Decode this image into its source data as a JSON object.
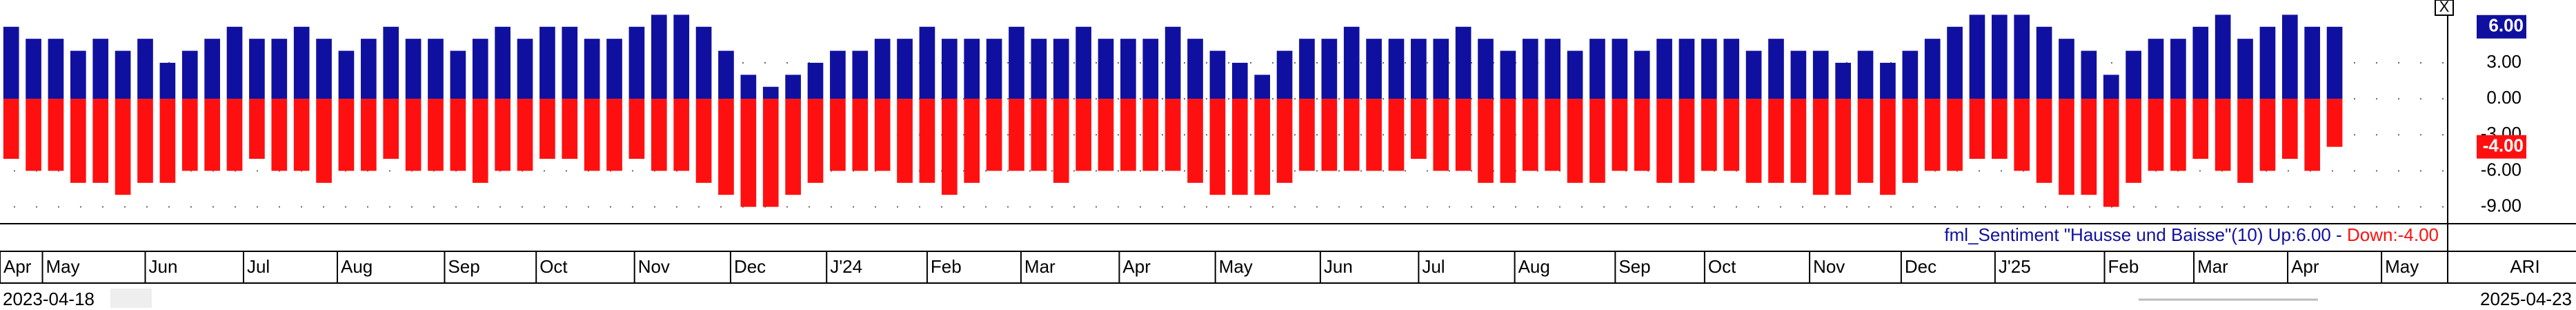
{
  "chart_data": {
    "type": "bar",
    "indicator": "fml_Sentiment \"Hausse und Baisse\"(10)",
    "legend_colon": ":",
    "legend_dash": "-",
    "series": [
      {
        "name": "Up",
        "color": "#1010a0",
        "last_value_label": "6.00",
        "values": [
          6,
          5,
          5,
          4,
          5,
          4,
          5,
          3,
          4,
          5,
          6,
          5,
          5,
          6,
          5,
          4,
          5,
          6,
          5,
          5,
          4,
          5,
          6,
          5,
          6,
          6,
          5,
          5,
          6,
          7,
          7,
          6,
          4,
          2,
          1,
          2,
          3,
          4,
          4,
          5,
          5,
          6,
          5,
          5,
          5,
          6,
          5,
          5,
          6,
          5,
          5,
          5,
          6,
          5,
          4,
          3,
          2,
          4,
          5,
          5,
          6,
          5,
          5,
          5,
          5,
          6,
          5,
          4,
          5,
          5,
          4,
          5,
          5,
          4,
          5,
          5,
          5,
          5,
          4,
          5,
          4,
          4,
          3,
          4,
          3,
          4,
          5,
          6,
          7,
          7,
          7,
          6,
          5,
          4,
          2,
          4,
          5,
          5,
          6,
          7,
          5,
          6,
          7,
          6,
          6
        ]
      },
      {
        "name": "Down",
        "color": "#ff1010",
        "last_value_label": "-4.00",
        "values": [
          -5,
          -6,
          -6,
          -7,
          -7,
          -8,
          -7,
          -7,
          -6,
          -6,
          -6,
          -5,
          -6,
          -6,
          -7,
          -6,
          -6,
          -5,
          -6,
          -6,
          -6,
          -7,
          -6,
          -6,
          -5,
          -5,
          -6,
          -6,
          -5,
          -6,
          -6,
          -7,
          -8,
          -9,
          -9,
          -8,
          -7,
          -6,
          -6,
          -6,
          -7,
          -7,
          -8,
          -7,
          -6,
          -6,
          -6,
          -7,
          -6,
          -6,
          -6,
          -6,
          -6,
          -7,
          -8,
          -8,
          -8,
          -7,
          -6,
          -6,
          -6,
          -6,
          -6,
          -5,
          -6,
          -6,
          -7,
          -7,
          -6,
          -6,
          -7,
          -7,
          -6,
          -6,
          -7,
          -7,
          -6,
          -6,
          -7,
          -7,
          -7,
          -8,
          -8,
          -7,
          -8,
          -7,
          -6,
          -6,
          -5,
          -5,
          -6,
          -7,
          -8,
          -8,
          -9,
          -7,
          -6,
          -6,
          -5,
          -6,
          -7,
          -6,
          -5,
          -6,
          -4
        ]
      }
    ],
    "ylim": [
      -10,
      8
    ],
    "yticks": [
      {
        "value": 3,
        "label": "3.00"
      },
      {
        "value": 0,
        "label": "0.00"
      },
      {
        "value": -3,
        "label": "-3.00"
      },
      {
        "value": -6,
        "label": "-6.00"
      },
      {
        "value": -9,
        "label": "-9.00"
      }
    ],
    "grid": true,
    "xlim": [
      0,
      109.5
    ],
    "xticks": [
      {
        "value": 0,
        "label": "Apr"
      },
      {
        "value": 1.9,
        "label": "May"
      },
      {
        "value": 6.5,
        "label": "Jun"
      },
      {
        "value": 10.9,
        "label": "Jul"
      },
      {
        "value": 15.1,
        "label": "Aug"
      },
      {
        "value": 19.9,
        "label": "Sep"
      },
      {
        "value": 24,
        "label": "Oct"
      },
      {
        "value": 28.4,
        "label": "Nov"
      },
      {
        "value": 32.7,
        "label": "Dec"
      },
      {
        "value": 37,
        "label": "J'24"
      },
      {
        "value": 41.5,
        "label": "Feb"
      },
      {
        "value": 45.7,
        "label": "Mar"
      },
      {
        "value": 50.1,
        "label": "Apr"
      },
      {
        "value": 54.4,
        "label": "May"
      },
      {
        "value": 59.1,
        "label": "Jun"
      },
      {
        "value": 63.5,
        "label": "Jul"
      },
      {
        "value": 67.8,
        "label": "Aug"
      },
      {
        "value": 72.3,
        "label": "Sep"
      },
      {
        "value": 76.3,
        "label": "Oct"
      },
      {
        "value": 81,
        "label": "Nov"
      },
      {
        "value": 85.1,
        "label": "Dec"
      },
      {
        "value": 89.3,
        "label": "J'25"
      },
      {
        "value": 94.2,
        "label": "Feb"
      },
      {
        "value": 98.2,
        "label": "Mar"
      },
      {
        "value": 102.4,
        "label": "Apr"
      },
      {
        "value": 106.6,
        "label": "May"
      }
    ],
    "symbol": "ARI",
    "start_date": "2023-04-18",
    "end_date": "2025-04-23",
    "close_button": "X"
  }
}
